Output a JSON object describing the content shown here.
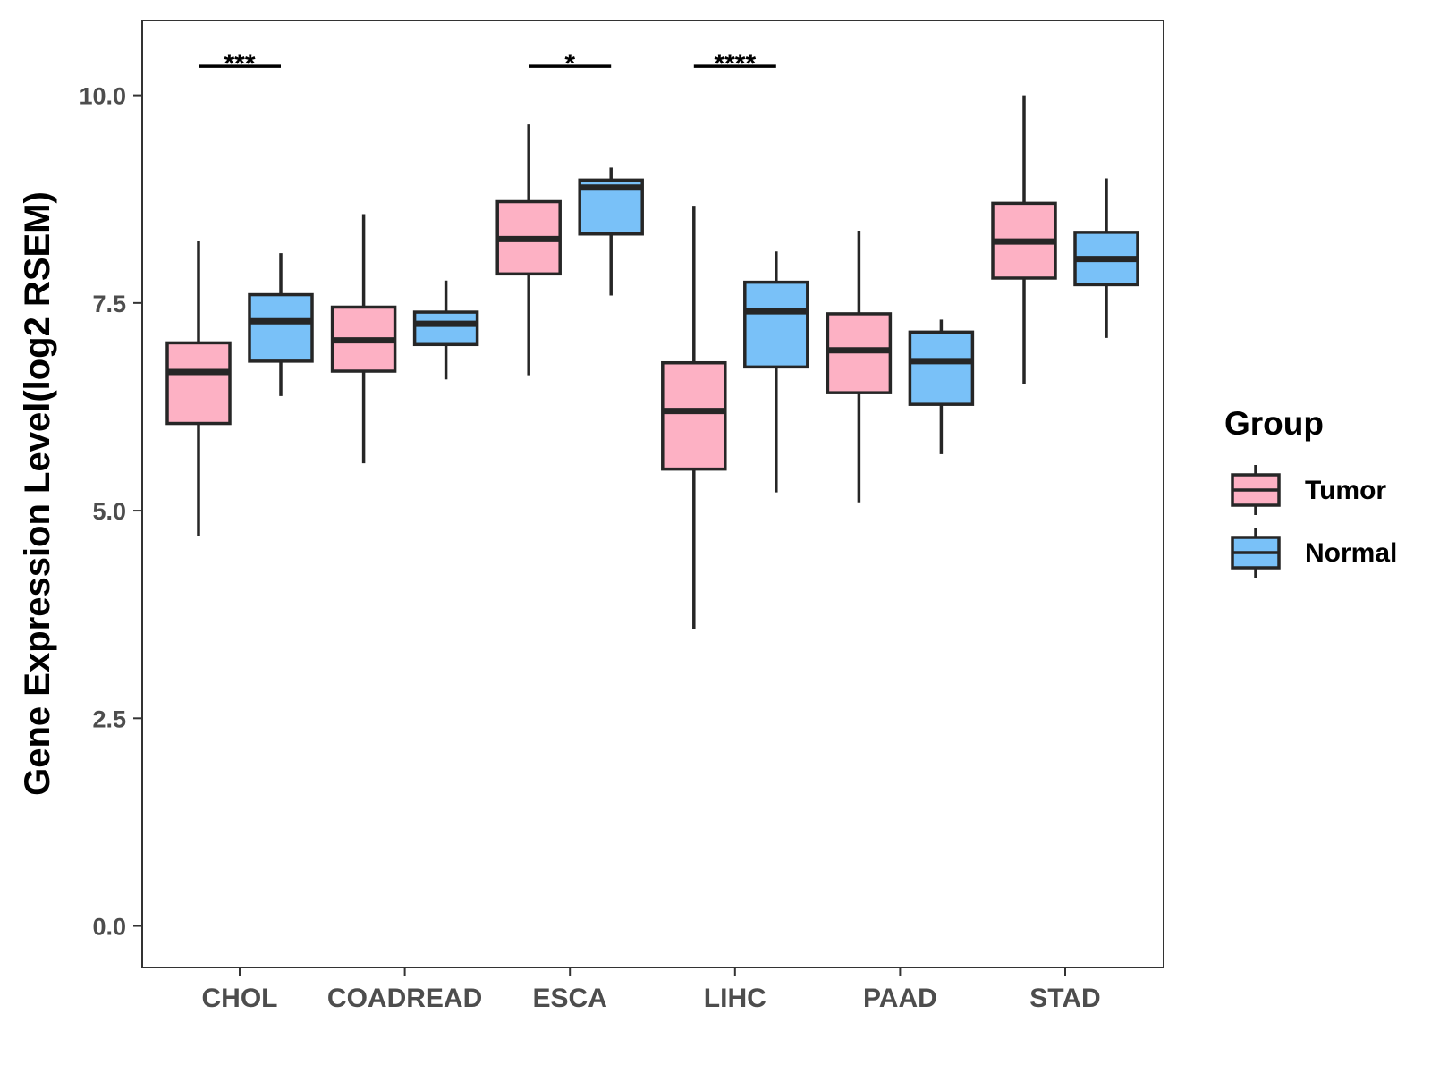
{
  "chart_data": {
    "type": "box",
    "title": "",
    "xlabel": "",
    "ylabel": "Gene Expression Level(log2 RSEM)",
    "ylim": [
      -0.5,
      10.9
    ],
    "yticks": [
      0.0,
      2.5,
      5.0,
      7.5,
      10.0
    ],
    "ytick_labels": [
      "0.0",
      "2.5",
      "5.0",
      "7.5",
      "10.0"
    ],
    "grid": false,
    "categories": [
      "CHOL",
      "COADREAD",
      "ESCA",
      "LIHC",
      "PAAD",
      "STAD"
    ],
    "legend": {
      "title": "Group",
      "position": "right"
    },
    "series": [
      {
        "name": "Tumor",
        "color": "#FDB1C4",
        "boxes": [
          {
            "category": "CHOL",
            "min": 4.7,
            "q1": 6.05,
            "median": 6.67,
            "q3": 7.02,
            "max": 8.25
          },
          {
            "category": "COADREAD",
            "min": 5.57,
            "q1": 6.68,
            "median": 7.05,
            "q3": 7.45,
            "max": 8.57
          },
          {
            "category": "ESCA",
            "min": 6.63,
            "q1": 7.85,
            "median": 8.27,
            "q3": 8.72,
            "max": 9.65
          },
          {
            "category": "LIHC",
            "min": 3.58,
            "q1": 5.5,
            "median": 6.2,
            "q3": 6.78,
            "max": 8.67
          },
          {
            "category": "PAAD",
            "min": 5.1,
            "q1": 6.42,
            "median": 6.93,
            "q3": 7.37,
            "max": 8.37
          },
          {
            "category": "STAD",
            "min": 6.53,
            "q1": 7.8,
            "median": 8.24,
            "q3": 8.7,
            "max": 10.0
          }
        ]
      },
      {
        "name": "Normal",
        "color": "#79C1F8",
        "boxes": [
          {
            "category": "CHOL",
            "min": 6.38,
            "q1": 6.8,
            "median": 7.28,
            "q3": 7.6,
            "max": 8.1
          },
          {
            "category": "COADREAD",
            "min": 6.58,
            "q1": 7.0,
            "median": 7.25,
            "q3": 7.39,
            "max": 7.77
          },
          {
            "category": "ESCA",
            "min": 7.59,
            "q1": 8.33,
            "median": 8.89,
            "q3": 8.98,
            "max": 9.13
          },
          {
            "category": "LIHC",
            "min": 5.22,
            "q1": 6.73,
            "median": 7.4,
            "q3": 7.75,
            "max": 8.12
          },
          {
            "category": "PAAD",
            "min": 5.68,
            "q1": 6.28,
            "median": 6.8,
            "q3": 7.15,
            "max": 7.3
          },
          {
            "category": "STAD",
            "min": 7.08,
            "q1": 7.72,
            "median": 8.03,
            "q3": 8.35,
            "max": 9.0
          }
        ]
      }
    ],
    "annotations": [
      {
        "category": "CHOL",
        "label": "***",
        "y": 10.35
      },
      {
        "category": "ESCA",
        "label": "*",
        "y": 10.35
      },
      {
        "category": "LIHC",
        "label": "****",
        "y": 10.35
      }
    ]
  }
}
